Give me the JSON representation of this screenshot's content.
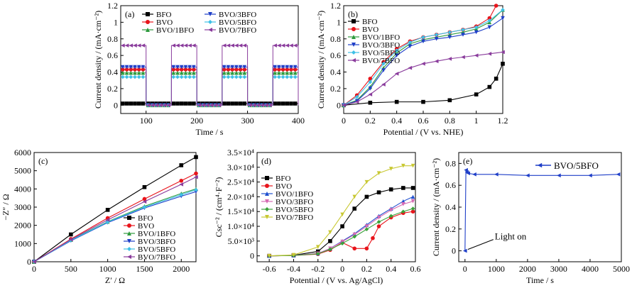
{
  "colors": {
    "BFO": "#000000",
    "BVO": "#e8141b",
    "BVO/1BFO": "#2e9a3d",
    "BVO/3BFO": "#1f3fc8",
    "BVO/5BFO": "#3fc0e6",
    "BVO/7BFO": "#8a3c9c",
    "BVO/7BFO_d": "#c8c832",
    "BVO/5BFO_d": "#3aa23a",
    "BVO/3BFO_d": "#d66bb3",
    "BVO/1BFO_d": "#1f4fcf"
  },
  "chart_data": [
    {
      "panel": "(a)",
      "type": "line",
      "xlabel": "Time / s",
      "ylabel": "Current density / (mA·cm⁻²)",
      "xlim": [
        50,
        400
      ],
      "ylim": [
        -0.1,
        1.2
      ],
      "xticks": [
        100,
        200,
        300,
        400
      ],
      "yticks": [
        0,
        0.2,
        0.4,
        0.6,
        0.8,
        1.0,
        1.2
      ],
      "legend_position": "top",
      "light_on_intervals": [
        [
          50,
          100
        ],
        [
          150,
          200
        ],
        [
          250,
          300
        ],
        [
          350,
          400
        ]
      ],
      "series": [
        {
          "name": "BFO",
          "marker": "square",
          "on": 0.02,
          "off": 0.02
        },
        {
          "name": "BVO",
          "marker": "circle",
          "on": 0.43,
          "off": 0.0
        },
        {
          "name": "BVO/1BFO",
          "marker": "triangle-up",
          "on": 0.39,
          "off": 0.0
        },
        {
          "name": "BVO/3BFO",
          "marker": "triangle-down",
          "on": 0.46,
          "off": 0.0
        },
        {
          "name": "BVO/5BFO",
          "marker": "diamond",
          "on": 0.34,
          "off": 0.0
        },
        {
          "name": "BVO/7BFO",
          "marker": "triangle-left",
          "on": 0.72,
          "off": 0.0
        }
      ]
    },
    {
      "panel": "(b)",
      "type": "line",
      "xlabel": "Potential / (V vs. NHE)",
      "ylabel": "Current density / (mA·cm⁻²)",
      "xlim": [
        0,
        1.2
      ],
      "ylim": [
        -0.1,
        1.2
      ],
      "xticks": [
        0,
        0.2,
        0.4,
        0.6,
        0.8,
        1.0,
        1.2
      ],
      "yticks": [
        0,
        0.2,
        0.4,
        0.6,
        0.8,
        1.0,
        1.2
      ],
      "legend_position": "top-left",
      "series": [
        {
          "name": "BFO",
          "marker": "square",
          "x": [
            0,
            0.2,
            0.4,
            0.6,
            0.8,
            1.0,
            1.1,
            1.15,
            1.2
          ],
          "y": [
            0.0,
            0.03,
            0.04,
            0.04,
            0.06,
            0.13,
            0.22,
            0.32,
            0.5
          ]
        },
        {
          "name": "BVO",
          "marker": "circle",
          "x": [
            0,
            0.1,
            0.2,
            0.3,
            0.4,
            0.5,
            0.6,
            0.7,
            0.8,
            0.9,
            1.0,
            1.1,
            1.15
          ],
          "y": [
            0.0,
            0.12,
            0.32,
            0.52,
            0.68,
            0.77,
            0.82,
            0.85,
            0.88,
            0.91,
            0.95,
            1.05,
            1.2
          ]
        },
        {
          "name": "BVO/1BFO",
          "marker": "triangle-up",
          "x": [
            0,
            0.1,
            0.2,
            0.3,
            0.4,
            0.5,
            0.6,
            0.7,
            0.8,
            0.9,
            1.0,
            1.1,
            1.2
          ],
          "y": [
            0.0,
            0.06,
            0.22,
            0.45,
            0.63,
            0.74,
            0.79,
            0.82,
            0.85,
            0.88,
            0.92,
            1.0,
            1.15
          ]
        },
        {
          "name": "BVO/3BFO",
          "marker": "triangle-down",
          "x": [
            0,
            0.1,
            0.2,
            0.3,
            0.4,
            0.5,
            0.6,
            0.7,
            0.8,
            0.9,
            1.0,
            1.1,
            1.2
          ],
          "y": [
            0.0,
            0.05,
            0.2,
            0.42,
            0.6,
            0.71,
            0.77,
            0.8,
            0.82,
            0.85,
            0.88,
            0.94,
            1.05
          ]
        },
        {
          "name": "BVO/5BFO",
          "marker": "diamond",
          "x": [
            0,
            0.1,
            0.2,
            0.3,
            0.4,
            0.5,
            0.6,
            0.7,
            0.8,
            0.9,
            1.0,
            1.1,
            1.2
          ],
          "y": [
            0.0,
            0.1,
            0.28,
            0.5,
            0.66,
            0.76,
            0.82,
            0.85,
            0.88,
            0.91,
            0.94,
            1.02,
            1.15
          ]
        },
        {
          "name": "BVO/7BFO",
          "marker": "triangle-left",
          "x": [
            0,
            0.1,
            0.2,
            0.3,
            0.4,
            0.5,
            0.6,
            0.7,
            0.8,
            0.9,
            1.0,
            1.1,
            1.2
          ],
          "y": [
            0.0,
            0.04,
            0.13,
            0.25,
            0.38,
            0.45,
            0.5,
            0.53,
            0.56,
            0.58,
            0.6,
            0.62,
            0.64
          ]
        }
      ]
    },
    {
      "panel": "(c)",
      "type": "line",
      "xlabel": "Z′ / Ω",
      "ylabel": "−Z″ / Ω",
      "xlim": [
        0,
        2200
      ],
      "ylim": [
        0,
        6000
      ],
      "xticks": [
        0,
        500,
        1000,
        1500,
        2000
      ],
      "yticks": [
        0,
        1000,
        2000,
        3000,
        4000,
        5000,
        6000
      ],
      "legend_position": "bottom-right",
      "series": [
        {
          "name": "BFO",
          "marker": "square",
          "x": [
            0,
            500,
            1000,
            1500,
            2000,
            2200
          ],
          "y": [
            0,
            1500,
            2850,
            4100,
            5300,
            5750
          ]
        },
        {
          "name": "BVO",
          "marker": "circle",
          "x": [
            0,
            500,
            1000,
            1500,
            2000,
            2200
          ],
          "y": [
            0,
            1250,
            2400,
            3450,
            4450,
            4850
          ]
        },
        {
          "name": "BVO/1BFO",
          "marker": "triangle-up",
          "x": [
            0,
            500,
            1000,
            1500,
            2000,
            2200
          ],
          "y": [
            0,
            1200,
            2200,
            3050,
            3750,
            4000
          ]
        },
        {
          "name": "BVO/3BFO",
          "marker": "triangle-down",
          "x": [
            0,
            500,
            1000,
            1500,
            2000,
            2200
          ],
          "y": [
            0,
            1150,
            2150,
            2950,
            3600,
            3850
          ]
        },
        {
          "name": "BVO/5BFO",
          "marker": "diamond",
          "x": [
            0,
            500,
            1000,
            1500,
            2000,
            2200
          ],
          "y": [
            0,
            1180,
            2180,
            3000,
            3680,
            3950
          ]
        },
        {
          "name": "BVO/7BFO",
          "marker": "triangle-left",
          "x": [
            0,
            500,
            1000,
            1500,
            2000,
            2200
          ],
          "y": [
            0,
            1220,
            2300,
            3300,
            4250,
            4650
          ]
        }
      ]
    },
    {
      "panel": "(d)",
      "type": "line",
      "xlabel": "Potential / (V vs. Ag/AgCl)",
      "ylabel": "Csc⁻² / (cm⁴·F⁻²)",
      "xlim": [
        -0.7,
        0.6
      ],
      "ylim": [
        -2000,
        35000
      ],
      "xticks": [
        -0.6,
        -0.4,
        -0.2,
        0,
        0.2,
        0.4,
        0.6
      ],
      "yticks": [
        0,
        5000,
        10000,
        15000,
        20000,
        25000,
        30000,
        35000
      ],
      "ytick_labels": [
        "0",
        "5.0×10³",
        "1.0×10⁴",
        "1.5×10⁴",
        "2.0×10⁴",
        "2.5×10⁴",
        "3.0×10⁴",
        "3.5×10⁴"
      ],
      "legend_position": "top-left",
      "series": [
        {
          "name": "BFO",
          "marker": "square",
          "color_key": "BFO",
          "x": [
            -0.6,
            -0.4,
            -0.2,
            -0.1,
            0.0,
            0.1,
            0.2,
            0.3,
            0.4,
            0.5,
            0.58
          ],
          "y": [
            0,
            200,
            1500,
            5000,
            10000,
            16000,
            20000,
            21500,
            22500,
            23000,
            23000
          ]
        },
        {
          "name": "BVO",
          "marker": "circle",
          "color_key": "BVO",
          "x": [
            -0.6,
            -0.4,
            -0.2,
            -0.1,
            0.0,
            0.1,
            0.2,
            0.25,
            0.3,
            0.4,
            0.5,
            0.58
          ],
          "y": [
            0,
            100,
            600,
            2000,
            4500,
            2500,
            2500,
            6000,
            10000,
            13000,
            14500,
            15000
          ]
        },
        {
          "name": "BVO/1BFO",
          "marker": "triangle-up",
          "color_key": "BVO/1BFO_d",
          "x": [
            -0.6,
            -0.4,
            -0.2,
            -0.1,
            0.0,
            0.1,
            0.2,
            0.3,
            0.4,
            0.5,
            0.58
          ],
          "y": [
            0,
            150,
            800,
            2500,
            5000,
            7500,
            10500,
            13500,
            16000,
            18500,
            20000
          ]
        },
        {
          "name": "BVO/3BFO",
          "marker": "triangle-down",
          "color_key": "BVO/3BFO_d",
          "x": [
            -0.6,
            -0.4,
            -0.2,
            -0.1,
            0.0,
            0.1,
            0.2,
            0.3,
            0.4,
            0.5,
            0.58
          ],
          "y": [
            0,
            150,
            800,
            2500,
            4800,
            7200,
            10000,
            13000,
            15500,
            17500,
            18500
          ]
        },
        {
          "name": "BVO/5BFO",
          "marker": "diamond",
          "color_key": "BVO/5BFO_d",
          "x": [
            -0.6,
            -0.4,
            -0.2,
            -0.1,
            0.0,
            0.1,
            0.2,
            0.3,
            0.4,
            0.5,
            0.58
          ],
          "y": [
            0,
            100,
            700,
            2200,
            4200,
            6500,
            9000,
            11500,
            13500,
            15000,
            16000
          ]
        },
        {
          "name": "BVO/7BFO",
          "marker": "triangle-down",
          "color_key": "BVO/7BFO_d",
          "x": [
            -0.6,
            -0.4,
            -0.2,
            -0.1,
            0.0,
            0.1,
            0.2,
            0.3,
            0.4,
            0.5,
            0.58
          ],
          "y": [
            0,
            300,
            3000,
            8000,
            14000,
            20000,
            25000,
            28000,
            29500,
            30500,
            30500
          ]
        }
      ]
    },
    {
      "panel": "(e)",
      "type": "line",
      "xlabel": "Time / s",
      "ylabel": "Current density / (mA·cm⁻²)",
      "xlim": [
        -200,
        5000
      ],
      "ylim": [
        -0.1,
        0.9
      ],
      "xticks": [
        0,
        1000,
        2000,
        3000,
        4000,
        5000
      ],
      "yticks": [
        0,
        0.2,
        0.4,
        0.6,
        0.8
      ],
      "legend_position": "top-right",
      "annotation": "Light on",
      "series": [
        {
          "name": "BVO/5BFO",
          "marker": "triangle-left",
          "color_key": "BVO/3BFO",
          "x": [
            0,
            30,
            60,
            100,
            300,
            1000,
            2000,
            3000,
            4000,
            4900
          ],
          "y": [
            0,
            0.74,
            0.72,
            0.71,
            0.7,
            0.7,
            0.69,
            0.69,
            0.69,
            0.7
          ]
        }
      ]
    }
  ]
}
